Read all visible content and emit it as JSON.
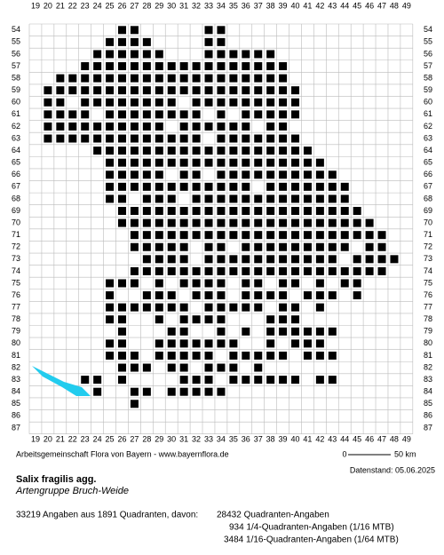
{
  "map": {
    "columns": [
      19,
      20,
      21,
      22,
      23,
      24,
      25,
      26,
      27,
      28,
      29,
      30,
      31,
      32,
      33,
      34,
      35,
      36,
      37,
      38,
      39,
      40,
      41,
      42,
      43,
      44,
      45,
      46,
      47,
      48,
      49
    ],
    "rows": [
      54,
      55,
      56,
      57,
      58,
      59,
      60,
      61,
      62,
      63,
      64,
      65,
      66,
      67,
      68,
      69,
      70,
      71,
      72,
      73,
      74,
      75,
      76,
      77,
      78,
      79,
      80,
      81,
      82,
      83,
      84,
      85,
      86,
      87
    ],
    "credit": "Arbeitsgemeinschaft Flora von Bayern - www.bayernflora.de",
    "scale_start": "0",
    "scale_end": "50 km",
    "date": "Datenstand: 05.06.2025"
  },
  "species": {
    "name": "Salix fragilis agg.",
    "common": "Artengruppe Bruch-Weide"
  },
  "stats": {
    "summary": "33219 Angaben aus 1891 Quadranten, davon:",
    "lines": [
      "28432 Quadranten-Angaben",
      "934 1/4-Quadranten-Angaben (1/16 MTB)",
      "3484 1/16-Quadranten-Angaben (1/64 MTB)"
    ]
  }
}
